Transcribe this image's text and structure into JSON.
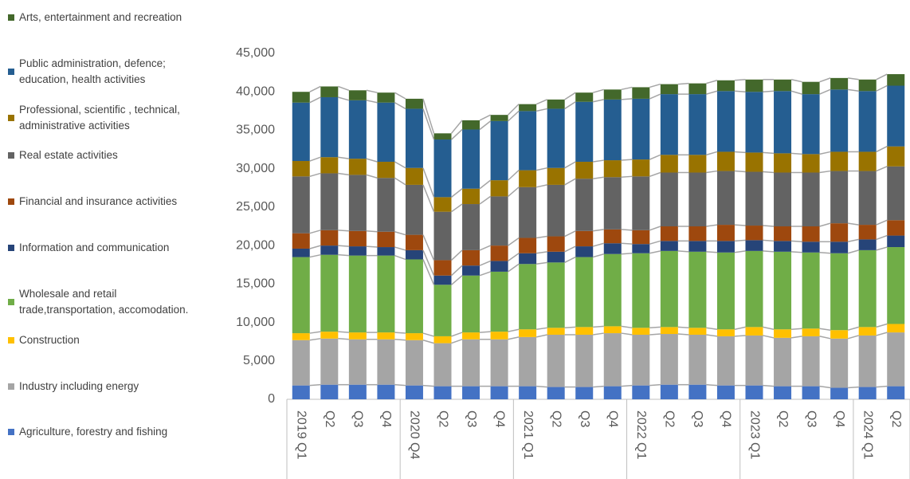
{
  "chart_data": {
    "type": "stacked-bar",
    "categories": [
      "2019 Q1",
      "Q2",
      "Q3",
      "Q4",
      "2020 Q4",
      "Q2",
      "Q3",
      "Q4",
      "2021 Q1",
      "Q2",
      "Q3",
      "Q4",
      "2022 Q1",
      "Q2",
      "Q3",
      "Q4",
      "2023 Q1",
      "Q2",
      "Q3",
      "Q4",
      "2024 Q1",
      "Q2"
    ],
    "ylim": [
      0,
      45000
    ],
    "yticks": [
      0,
      {
        "value": 5000,
        "label": "5,000"
      },
      {
        "value": 10000,
        "label": "10,000"
      },
      {
        "value": 15000,
        "label": "15,000"
      },
      {
        "value": 20000,
        "label": "20,000"
      },
      {
        "value": 25000,
        "label": "25,000"
      },
      {
        "value": 30000,
        "label": "30,000"
      },
      {
        "value": 35000,
        "label": "35,000"
      },
      {
        "value": 40000,
        "label": "40,000"
      },
      {
        "value": 45000,
        "label": "45,000"
      }
    ],
    "grid": false,
    "legend": "left",
    "series": [
      {
        "name": "Agriculture, forestry and fishing",
        "color": "#4472c4",
        "values": [
          1800,
          1900,
          1900,
          1900,
          1800,
          1700,
          1700,
          1700,
          1700,
          1600,
          1600,
          1700,
          1800,
          1900,
          1900,
          1800,
          1800,
          1700,
          1700,
          1500,
          1600,
          1700
        ]
      },
      {
        "name": "Industry including energy",
        "color": "#a5a5a5",
        "values": [
          5900,
          6000,
          5900,
          5900,
          5900,
          5600,
          6100,
          6100,
          6400,
          6800,
          6800,
          6900,
          6600,
          6600,
          6500,
          6400,
          6500,
          6300,
          6500,
          6400,
          6700,
          7000
        ]
      },
      {
        "name": "Construction",
        "color": "#ffc000",
        "values": [
          900,
          900,
          900,
          900,
          900,
          900,
          900,
          1000,
          1000,
          900,
          1000,
          900,
          900,
          900,
          900,
          900,
          1100,
          1100,
          1000,
          1100,
          1100,
          1100
        ]
      },
      {
        "name": "Wholesale and retail\ntrade,transportation, accomodation.",
        "color": "#70ad47",
        "values": [
          9900,
          10000,
          10000,
          10000,
          9600,
          6700,
          7400,
          7800,
          8500,
          8500,
          9100,
          9400,
          9700,
          9900,
          9900,
          10000,
          9900,
          10100,
          9900,
          10000,
          10000,
          10000
        ]
      },
      {
        "name": "Information and communication",
        "color": "#264478",
        "values": [
          1100,
          1200,
          1200,
          1100,
          1200,
          1200,
          1300,
          1400,
          1400,
          1400,
          1400,
          1400,
          1200,
          1300,
          1400,
          1500,
          1400,
          1400,
          1400,
          1500,
          1400,
          1500
        ]
      },
      {
        "name": "Financial and insurance activities",
        "color": "#9e480e",
        "values": [
          2000,
          2000,
          2000,
          2000,
          2000,
          2000,
          2000,
          2000,
          2000,
          2000,
          2000,
          1800,
          1800,
          1900,
          1900,
          2100,
          1900,
          1900,
          2000,
          2400,
          1900,
          2000
        ]
      },
      {
        "name": "Real estate activities",
        "color": "#636363",
        "values": [
          7400,
          7400,
          7300,
          7000,
          6500,
          6300,
          6000,
          6400,
          6600,
          6700,
          6800,
          6800,
          7000,
          7000,
          7000,
          7000,
          7000,
          7000,
          7000,
          6800,
          7000,
          7000
        ]
      },
      {
        "name": "Professional, scientific , technical,\nadministrative  activities",
        "color": "#997300",
        "values": [
          2000,
          2100,
          2100,
          2100,
          2200,
          1900,
          2000,
          2100,
          2200,
          2200,
          2200,
          2200,
          2200,
          2300,
          2300,
          2500,
          2500,
          2500,
          2400,
          2500,
          2500,
          2600
        ]
      },
      {
        "name": "Public administration, defence;\neducation,  health activities",
        "color": "#255e91",
        "values": [
          7600,
          7800,
          7600,
          7700,
          7700,
          7500,
          7700,
          7700,
          7700,
          7700,
          7800,
          7900,
          7900,
          7900,
          7900,
          7900,
          7900,
          8100,
          7800,
          8100,
          7900,
          7900
        ]
      },
      {
        "name": "Arts, entertainment and recreation",
        "color": "#43682b",
        "values": [
          1400,
          1400,
          1300,
          1300,
          1300,
          800,
          1200,
          800,
          900,
          1200,
          1200,
          1300,
          1500,
          1300,
          1400,
          1400,
          1600,
          1500,
          1600,
          1500,
          1500,
          1500
        ]
      }
    ]
  }
}
